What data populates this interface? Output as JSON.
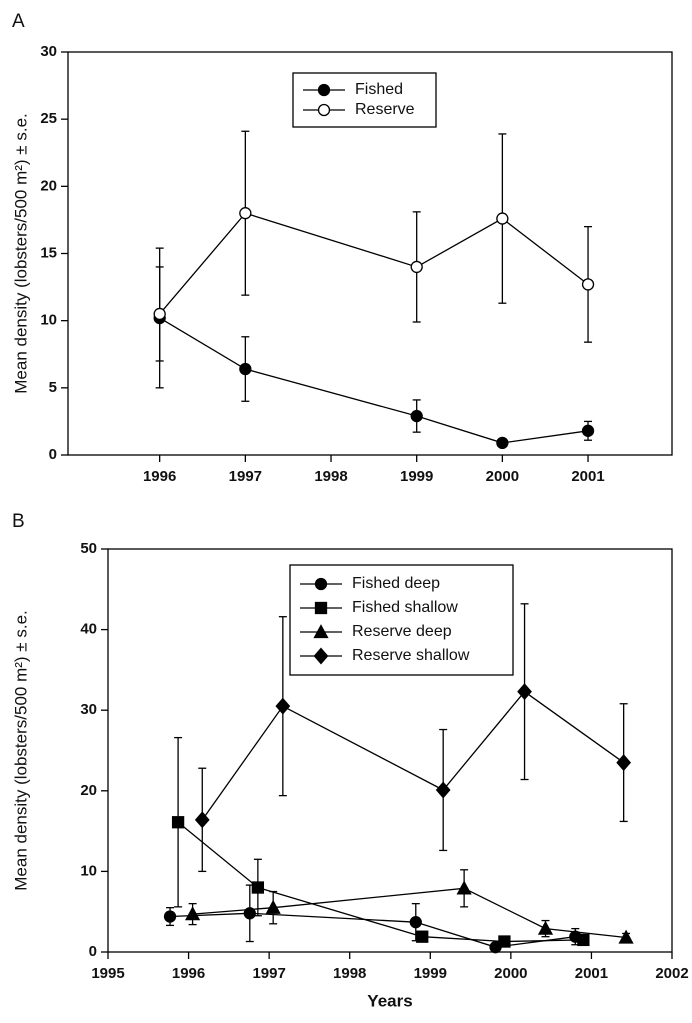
{
  "chart_data": [
    {
      "type": "line",
      "panel_label": "A",
      "y_label": "Mean density (lobsters/500 m²) ± s.e.",
      "xlim": [
        1994.93,
        2001.98
      ],
      "xticks": [
        1996,
        1997,
        1998,
        1999,
        2000,
        2001
      ],
      "ylim": [
        0,
        30
      ],
      "yticks": [
        0,
        5,
        10,
        15,
        20,
        25,
        30
      ],
      "legend": "top-center",
      "series": [
        {
          "name": "Fished",
          "color": "#000000",
          "marker": "circle",
          "fill": "#000000",
          "x": [
            1996,
            1997,
            1999,
            2000,
            2001
          ],
          "values": [
            10.2,
            6.4,
            2.9,
            0.9,
            1.8
          ],
          "errors": [
            5.2,
            2.4,
            1.2,
            0.2,
            0.7
          ]
        },
        {
          "name": "Reserve",
          "color": "#000000",
          "marker": "circle",
          "fill": "#ffffff",
          "x": [
            1996,
            1997,
            1999,
            2000,
            2001
          ],
          "values": [
            10.5,
            18.0,
            14.0,
            17.6,
            12.7
          ],
          "errors": [
            3.5,
            6.1,
            4.1,
            6.3,
            4.3
          ]
        }
      ]
    },
    {
      "type": "line",
      "panel_label": "B",
      "y_label": "Mean density (lobsters/500 m²) ± s.e.",
      "x_label": "Years",
      "xlim": [
        1995,
        2002
      ],
      "xticks": [
        1995,
        1996,
        1997,
        1998,
        1999,
        2000,
        2001,
        2002
      ],
      "ylim": [
        0,
        50
      ],
      "yticks": [
        0,
        10,
        20,
        30,
        40,
        50
      ],
      "legend": "top-center",
      "series": [
        {
          "name": "Fished deep",
          "color": "#000000",
          "marker": "circle",
          "fill": "#000000",
          "x": [
            1995.77,
            1996.76,
            1998.82,
            1999.81,
            2000.8
          ],
          "values": [
            4.4,
            4.8,
            3.7,
            0.6,
            1.9
          ],
          "errors": [
            1.1,
            3.5,
            2.3,
            0.3,
            1.0
          ]
        },
        {
          "name": "Fished shallow",
          "color": "#000000",
          "marker": "square",
          "fill": "#000000",
          "x": [
            1995.87,
            1996.86,
            1998.9,
            1999.92,
            2000.9
          ],
          "values": [
            16.1,
            8.0,
            1.9,
            1.3,
            1.5
          ],
          "errors": [
            10.5,
            3.5,
            0.5,
            0.3,
            0.5
          ]
        },
        {
          "name": "Reserve deep",
          "color": "#000000",
          "marker": "triangle",
          "fill": "#000000",
          "x": [
            1996.05,
            1997.05,
            1999.42,
            2000.43,
            2001.43
          ],
          "values": [
            4.7,
            5.5,
            7.9,
            2.9,
            1.8
          ],
          "errors": [
            1.3,
            2.0,
            2.3,
            1.0,
            0.5
          ]
        },
        {
          "name": "Reserve shallow",
          "color": "#000000",
          "marker": "diamond",
          "fill": "#000000",
          "x": [
            1996.17,
            1997.17,
            1999.16,
            2000.17,
            2001.4
          ],
          "values": [
            16.4,
            30.5,
            20.1,
            32.3,
            23.5
          ],
          "errors": [
            6.4,
            11.1,
            7.5,
            10.9,
            7.3
          ]
        }
      ]
    }
  ]
}
